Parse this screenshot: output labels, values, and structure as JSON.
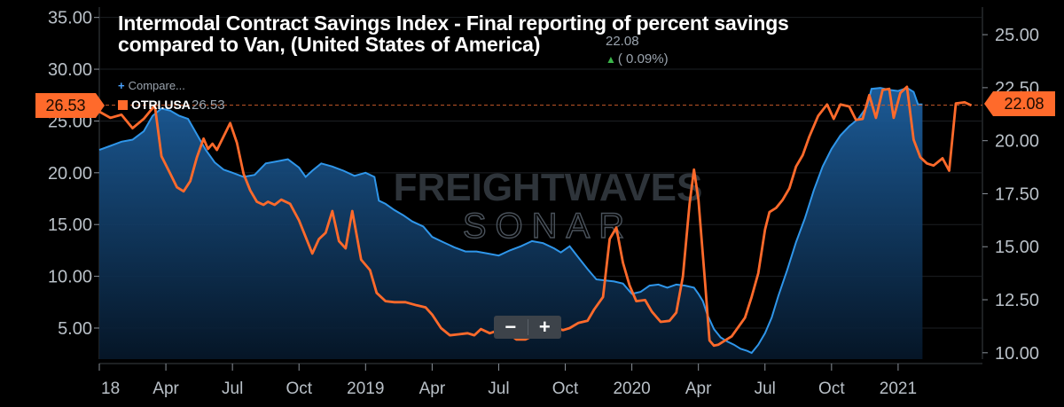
{
  "header": {
    "title_line1": "Intermodal Contract Savings Index - Final reporting of percent savings",
    "title_line2": "compared to Van, (United States of America)",
    "last_value": "22.08",
    "change": "( 0.09%)",
    "compare_label": "Compare...",
    "series_label": "OTRI.USA",
    "series_value": "26.53"
  },
  "price_tags": {
    "left": "26.53",
    "right": "22.08"
  },
  "watermark": {
    "line1": "FREIGHTWAVES",
    "line2": "SONAR"
  },
  "zoom": {
    "minus": "−",
    "plus": "+"
  },
  "colors": {
    "orange": "#ff6a2b",
    "blue": "#2f96ea",
    "background": "#000000",
    "grid": "#2a2e33"
  },
  "chart_data": {
    "type": "line",
    "title": "Intermodal Contract Savings Index - Final reporting of percent savings compared to Van, (United States of America)",
    "x_tick_labels": [
      "18",
      "Apr",
      "Jul",
      "Oct",
      "2019",
      "Apr",
      "Jul",
      "Oct",
      "2020",
      "Apr",
      "Jul",
      "Oct",
      "2021"
    ],
    "x_tick_positions": [
      0,
      3,
      6,
      9,
      12,
      15,
      18,
      21,
      24,
      27,
      30,
      33,
      36
    ],
    "x_range": [
      0,
      39.8
    ],
    "left_axis": {
      "ticks": [
        "5.00",
        "10.00",
        "15.00",
        "20.00",
        "25.00",
        "30.00",
        "35.00"
      ],
      "range": [
        2,
        36
      ]
    },
    "right_axis": {
      "ticks": [
        "10.00",
        "12.50",
        "15.00",
        "17.50",
        "20.00",
        "22.50",
        "25.00"
      ],
      "range": [
        9.7,
        26.3
      ]
    },
    "reference_line": {
      "axis": "left",
      "value": 26.53
    },
    "series": [
      {
        "name": "OTRI.USA",
        "axis": "left",
        "color": "#ff6a2b",
        "points": [
          [
            0,
            25.9
          ],
          [
            0.5,
            25.3
          ],
          [
            1,
            25.6
          ],
          [
            1.5,
            24.3
          ],
          [
            2,
            25.2
          ],
          [
            2.5,
            26.5
          ],
          [
            2.8,
            21.6
          ],
          [
            3.2,
            19.9
          ],
          [
            3.5,
            18.6
          ],
          [
            3.8,
            18.2
          ],
          [
            4.1,
            19.2
          ],
          [
            4.4,
            21.5
          ],
          [
            4.7,
            23.3
          ],
          [
            4.9,
            22.3
          ],
          [
            5.1,
            22.8
          ],
          [
            5.3,
            22.2
          ],
          [
            5.6,
            23.5
          ],
          [
            5.9,
            24.8
          ],
          [
            6.2,
            22.9
          ],
          [
            6.5,
            19.9
          ],
          [
            6.8,
            18.3
          ],
          [
            7.1,
            17.2
          ],
          [
            7.4,
            16.9
          ],
          [
            7.6,
            17.2
          ],
          [
            7.9,
            16.9
          ],
          [
            8.2,
            17.4
          ],
          [
            8.6,
            17.0
          ],
          [
            9.0,
            15.4
          ],
          [
            9.3,
            13.8
          ],
          [
            9.6,
            12.2
          ],
          [
            9.9,
            13.6
          ],
          [
            10.2,
            14.2
          ],
          [
            10.5,
            16.3
          ],
          [
            10.8,
            13.4
          ],
          [
            11.1,
            12.7
          ],
          [
            11.4,
            16.3
          ],
          [
            11.8,
            11.6
          ],
          [
            12.2,
            10.6
          ],
          [
            12.5,
            8.4
          ],
          [
            12.9,
            7.6
          ],
          [
            13.3,
            7.5
          ],
          [
            13.8,
            7.5
          ],
          [
            14.3,
            7.2
          ],
          [
            14.7,
            7.0
          ],
          [
            15.0,
            6.3
          ],
          [
            15.4,
            5.0
          ],
          [
            15.8,
            4.3
          ],
          [
            16.2,
            4.4
          ],
          [
            16.6,
            4.5
          ],
          [
            16.9,
            4.3
          ],
          [
            17.2,
            4.9
          ],
          [
            17.6,
            4.5
          ],
          [
            18.0,
            4.8
          ],
          [
            18.4,
            4.5
          ],
          [
            18.8,
            3.9
          ],
          [
            19.2,
            3.9
          ],
          [
            19.6,
            4.3
          ],
          [
            20.0,
            5.1
          ],
          [
            20.3,
            6.0
          ],
          [
            20.6,
            5.0
          ],
          [
            20.9,
            4.8
          ],
          [
            21.2,
            5.0
          ],
          [
            21.6,
            5.5
          ],
          [
            22.0,
            5.7
          ],
          [
            22.3,
            6.8
          ],
          [
            22.7,
            8.0
          ],
          [
            23.0,
            13.6
          ],
          [
            23.3,
            14.7
          ],
          [
            23.6,
            11.3
          ],
          [
            23.9,
            9.1
          ],
          [
            24.2,
            7.6
          ],
          [
            24.6,
            7.7
          ],
          [
            24.9,
            6.6
          ],
          [
            25.3,
            5.6
          ],
          [
            25.7,
            5.7
          ],
          [
            26.0,
            6.5
          ],
          [
            26.3,
            10.0
          ],
          [
            26.6,
            17.0
          ],
          [
            26.8,
            20.3
          ],
          [
            27.0,
            17.4
          ],
          [
            27.3,
            9.4
          ],
          [
            27.5,
            3.8
          ],
          [
            27.7,
            3.3
          ],
          [
            27.9,
            3.4
          ],
          [
            28.2,
            3.8
          ],
          [
            28.5,
            4.2
          ],
          [
            28.8,
            5.1
          ],
          [
            29.1,
            6.0
          ],
          [
            29.4,
            8.0
          ],
          [
            29.7,
            10.3
          ],
          [
            30.0,
            14.5
          ],
          [
            30.2,
            16.2
          ],
          [
            30.5,
            16.6
          ],
          [
            30.8,
            17.4
          ],
          [
            31.1,
            18.5
          ],
          [
            31.4,
            20.6
          ],
          [
            31.7,
            21.7
          ],
          [
            32.0,
            23.5
          ],
          [
            32.4,
            25.5
          ],
          [
            32.8,
            26.6
          ],
          [
            33.1,
            25.2
          ],
          [
            33.4,
            26.6
          ],
          [
            33.8,
            26.4
          ],
          [
            34.1,
            25.1
          ],
          [
            34.4,
            25.2
          ],
          [
            34.7,
            27.5
          ],
          [
            35.0,
            25.3
          ],
          [
            35.3,
            28.0
          ],
          [
            35.6,
            28.1
          ],
          [
            35.8,
            25.3
          ],
          [
            36.1,
            27.7
          ],
          [
            36.4,
            28.3
          ],
          [
            36.7,
            23.2
          ],
          [
            37.0,
            21.5
          ],
          [
            37.3,
            20.9
          ],
          [
            37.6,
            20.7
          ],
          [
            38.0,
            21.4
          ],
          [
            38.3,
            20.2
          ],
          [
            38.6,
            26.7
          ],
          [
            39.0,
            26.8
          ],
          [
            39.3,
            26.5
          ]
        ]
      },
      {
        "name": "",
        "axis": "left",
        "color": "#2f96ea",
        "points": [
          [
            0,
            22.2
          ],
          [
            0.5,
            22.6
          ],
          [
            1,
            23.0
          ],
          [
            1.5,
            23.2
          ],
          [
            2,
            24.0
          ],
          [
            2.4,
            25.5
          ],
          [
            2.8,
            26.2
          ],
          [
            3.2,
            26.0
          ],
          [
            3.6,
            25.5
          ],
          [
            4.0,
            25.2
          ],
          [
            4.4,
            23.7
          ],
          [
            4.8,
            22.2
          ],
          [
            5.2,
            21.0
          ],
          [
            5.6,
            20.3
          ],
          [
            6.0,
            20.0
          ],
          [
            6.5,
            19.6
          ],
          [
            7.0,
            19.8
          ],
          [
            7.5,
            20.9
          ],
          [
            8.0,
            21.1
          ],
          [
            8.5,
            21.3
          ],
          [
            9.0,
            20.5
          ],
          [
            9.3,
            19.6
          ],
          [
            9.6,
            20.2
          ],
          [
            10.0,
            20.9
          ],
          [
            10.5,
            20.6
          ],
          [
            11.0,
            20.2
          ],
          [
            11.5,
            19.7
          ],
          [
            12.0,
            20.0
          ],
          [
            12.4,
            19.6
          ],
          [
            12.6,
            17.3
          ],
          [
            12.9,
            17.0
          ],
          [
            13.3,
            16.4
          ],
          [
            13.7,
            15.9
          ],
          [
            14.1,
            15.3
          ],
          [
            14.6,
            14.8
          ],
          [
            15.0,
            13.8
          ],
          [
            15.5,
            13.3
          ],
          [
            16.0,
            12.8
          ],
          [
            16.5,
            12.4
          ],
          [
            17.0,
            12.4
          ],
          [
            17.5,
            12.2
          ],
          [
            18.0,
            12.0
          ],
          [
            18.5,
            12.5
          ],
          [
            19.0,
            12.9
          ],
          [
            19.5,
            13.4
          ],
          [
            20.0,
            13.2
          ],
          [
            20.5,
            12.7
          ],
          [
            20.8,
            12.3
          ],
          [
            21.2,
            12.9
          ],
          [
            21.6,
            11.8
          ],
          [
            22.0,
            10.7
          ],
          [
            22.4,
            9.7
          ],
          [
            22.8,
            9.6
          ],
          [
            23.2,
            9.5
          ],
          [
            23.6,
            9.3
          ],
          [
            24.0,
            8.3
          ],
          [
            24.4,
            8.5
          ],
          [
            24.8,
            9.1
          ],
          [
            25.2,
            9.2
          ],
          [
            25.6,
            8.9
          ],
          [
            26.0,
            9.2
          ],
          [
            26.4,
            9.1
          ],
          [
            26.8,
            8.9
          ],
          [
            27.0,
            8.3
          ],
          [
            27.2,
            7.6
          ],
          [
            27.4,
            6.3
          ],
          [
            27.7,
            4.9
          ],
          [
            28.0,
            4.1
          ],
          [
            28.3,
            3.7
          ],
          [
            28.6,
            3.4
          ],
          [
            28.9,
            3.0
          ],
          [
            29.2,
            2.8
          ],
          [
            29.4,
            2.6
          ],
          [
            29.7,
            3.4
          ],
          [
            30.0,
            4.5
          ],
          [
            30.3,
            6.0
          ],
          [
            30.6,
            8.1
          ],
          [
            31.0,
            10.6
          ],
          [
            31.4,
            13.3
          ],
          [
            31.8,
            15.6
          ],
          [
            32.2,
            18.3
          ],
          [
            32.6,
            20.6
          ],
          [
            33.0,
            22.3
          ],
          [
            33.4,
            23.6
          ],
          [
            33.8,
            24.5
          ],
          [
            34.2,
            25.2
          ],
          [
            34.6,
            26.4
          ],
          [
            34.8,
            28.1
          ],
          [
            35.2,
            28.2
          ],
          [
            35.6,
            28.0
          ],
          [
            36.0,
            27.9
          ],
          [
            36.4,
            28.2
          ],
          [
            36.7,
            27.8
          ],
          [
            36.9,
            26.6
          ],
          [
            37.1,
            26.6
          ]
        ]
      }
    ]
  }
}
